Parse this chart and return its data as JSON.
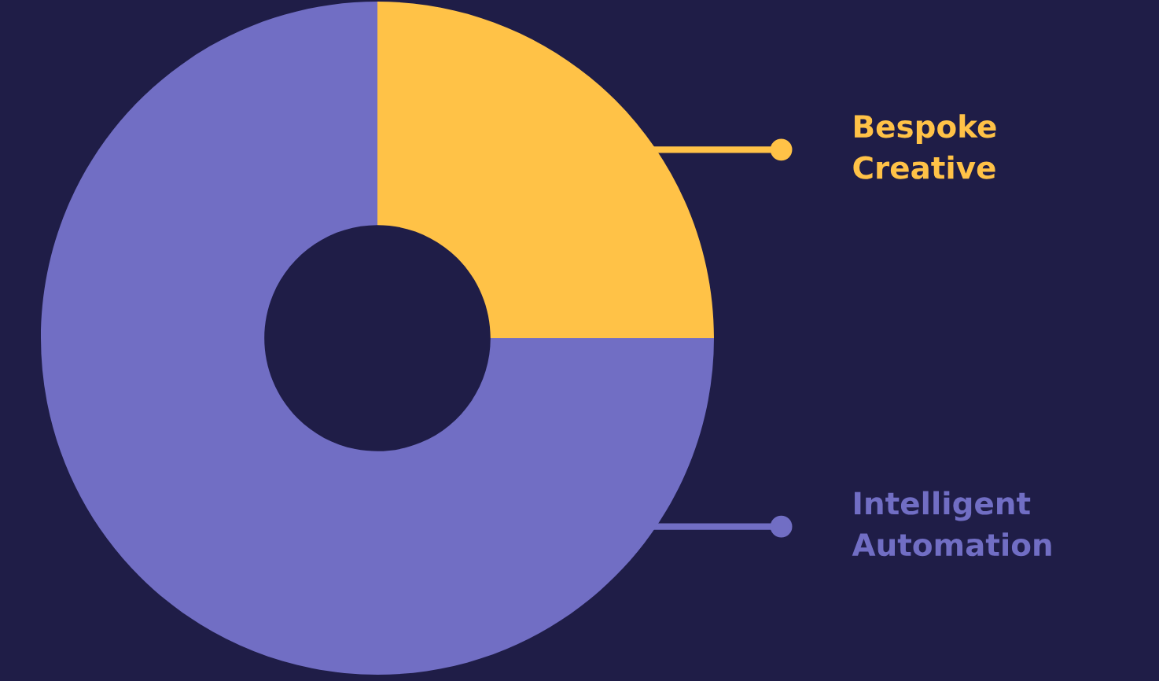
{
  "chart_data": {
    "type": "donut",
    "categories": [
      "Bespoke\nCreative",
      "Intelligent\nAutomation"
    ],
    "values": [
      25,
      75
    ],
    "colors": [
      "#ffc247",
      "#716ec4"
    ],
    "legend": "right"
  }
}
